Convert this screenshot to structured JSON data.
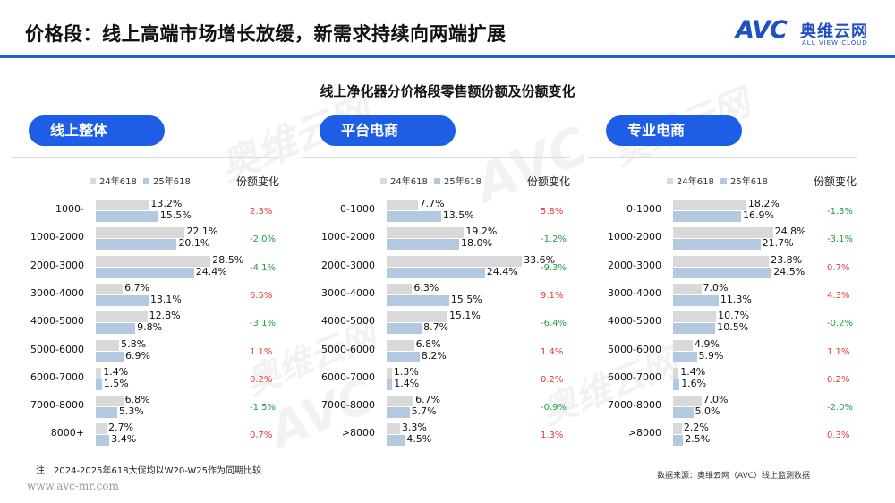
{
  "page": {
    "title": "价格段：线上高端市场增长放缓，新需求持续向两端扩展"
  },
  "brand": {
    "logo_text": "AVC",
    "logo_cn": "奥维云网",
    "logo_en": "ALL VIEW CLOUD",
    "accent": "#1f5fd6"
  },
  "chart_data": {
    "type": "bar",
    "title": "线上净化器分价格段零售额份额及份额变化",
    "legend": {
      "series_a": "24年618",
      "series_b": "25年618",
      "change": "份额变化"
    },
    "colors": {
      "series_a": "#d9d9d9",
      "series_b": "#b3c9df",
      "positive": "#e03a3a",
      "negative": "#1e9e46"
    },
    "panels": [
      {
        "name": "线上整体",
        "categories": [
          "1000-",
          "1000-2000",
          "2000-3000",
          "3000-4000",
          "4000-5000",
          "5000-6000",
          "6000-7000",
          "7000-8000",
          "8000+"
        ],
        "series": [
          {
            "name": "24年618",
            "values": [
              13.2,
              22.1,
              28.5,
              6.7,
              12.8,
              5.8,
              1.4,
              6.8,
              2.7
            ]
          },
          {
            "name": "25年618",
            "values": [
              15.5,
              20.1,
              24.4,
              13.1,
              9.8,
              6.9,
              1.5,
              5.3,
              3.4
            ]
          }
        ],
        "change": [
          "2.3%",
          "-2.0%",
          "-4.1%",
          "6.5%",
          "-3.1%",
          "1.1%",
          "0.2%",
          "-1.5%",
          "0.7%"
        ]
      },
      {
        "name": "平台电商",
        "categories": [
          "0-1000",
          "1000-2000",
          "2000-3000",
          "3000-4000",
          "4000-5000",
          "5000-6000",
          "6000-7000",
          "7000-8000",
          ">8000"
        ],
        "series": [
          {
            "name": "24年618",
            "values": [
              7.7,
              19.2,
              33.6,
              6.3,
              15.1,
              6.8,
              1.3,
              6.7,
              3.3
            ]
          },
          {
            "name": "25年618",
            "values": [
              13.5,
              18.0,
              24.4,
              15.5,
              8.7,
              8.2,
              1.4,
              5.7,
              4.5
            ]
          }
        ],
        "change": [
          "5.8%",
          "-1.2%",
          "-9.3%",
          "9.1%",
          "-6.4%",
          "1.4%",
          "0.2%",
          "-0.9%",
          "1.3%"
        ]
      },
      {
        "name": "专业电商",
        "categories": [
          "0-1000",
          "1000-2000",
          "2000-3000",
          "3000-4000",
          "4000-5000",
          "5000-6000",
          "6000-7000",
          "7000-8000",
          ">8000"
        ],
        "series": [
          {
            "name": "24年618",
            "values": [
              18.2,
              24.8,
              23.8,
              7.0,
              10.7,
              4.9,
              1.4,
              7.0,
              2.2
            ]
          },
          {
            "name": "25年618",
            "values": [
              16.9,
              21.7,
              24.5,
              11.3,
              10.5,
              5.9,
              1.6,
              5.0,
              2.5
            ]
          }
        ],
        "change": [
          "-1.3%",
          "-3.1%",
          "0.7%",
          "4.3%",
          "-0.2%",
          "1.1%",
          "0.2%",
          "-2.0%",
          "0.3%"
        ]
      }
    ]
  },
  "footer": {
    "note": "注：2024-2025年618大促均以W20-W25作为同期比较",
    "website": "www.avc-mr.com",
    "source": "数据来源：奥维云网（AVC）线上监测数据"
  },
  "watermark": {
    "logo": "AVC",
    "cn": "奥维云网",
    "en": "ALL VIEW CLOUD"
  }
}
